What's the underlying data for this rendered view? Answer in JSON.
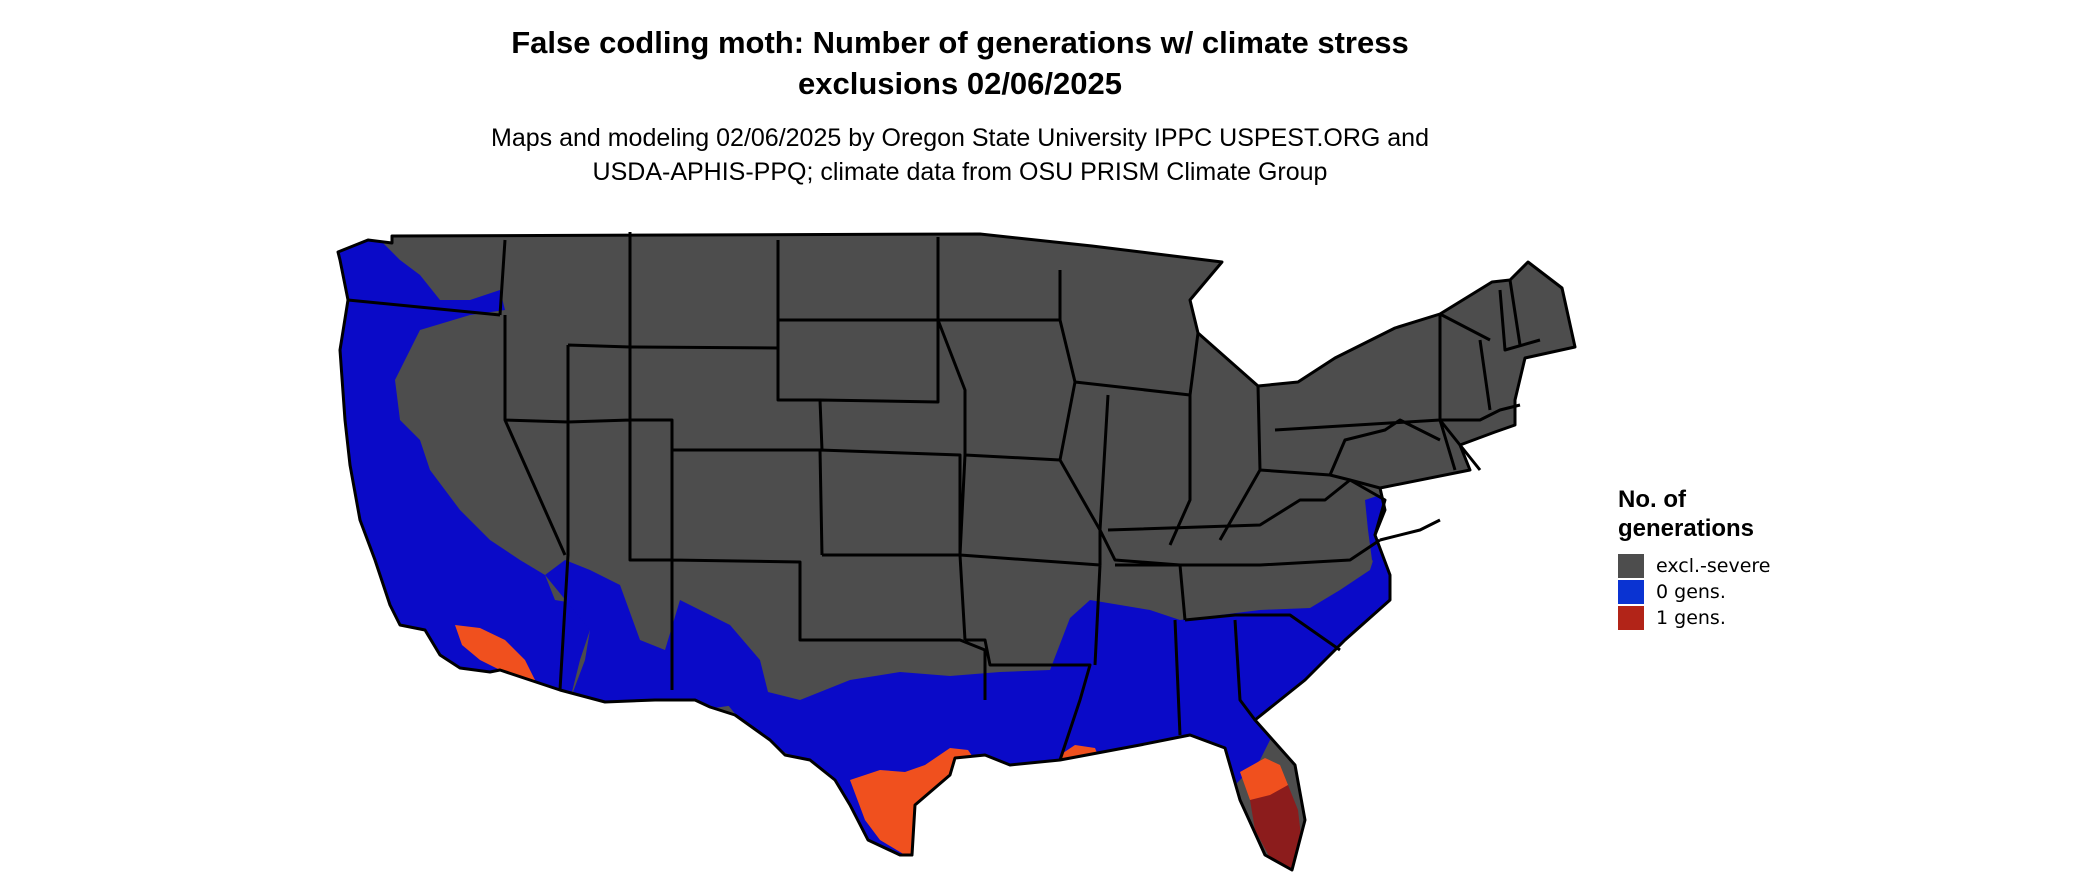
{
  "header": {
    "title_line1": "False codling moth: Number of generations w/ climate stress",
    "title_line2": "exclusions 02/06/2025",
    "subtitle_line1": "Maps and modeling 02/06/2025 by Oregon State University IPPC USPEST.ORG and",
    "subtitle_line2": "USDA-APHIS-PPQ; climate data from OSU PRISM Climate Group"
  },
  "map": {
    "region": "Contiguous United States",
    "regions_shown": [
      {
        "area": "Interior and northern states",
        "category": "excl.-severe"
      },
      {
        "area": "Pacific coast, desert Southwest and southern states",
        "category": "0 gens."
      },
      {
        "area": "Southern California coast, south Texas, Louisiana coast and Florida peninsula",
        "category": "1 gens."
      }
    ]
  },
  "legend": {
    "title_line1": "No. of",
    "title_line2": "generations",
    "items": [
      {
        "label": "excl.-severe",
        "color": "#4d4d4d"
      },
      {
        "label": "0 gens.",
        "color": "#0a33d2"
      },
      {
        "label": "1 gens.",
        "color": "#b22418"
      }
    ]
  },
  "colors": {
    "excluded": "#4d4d4d",
    "zero_generations": "#0a0ac8",
    "one_generation_light": "#f0501e",
    "one_generation_dark": "#8c1c1c",
    "borders": "#000000"
  }
}
